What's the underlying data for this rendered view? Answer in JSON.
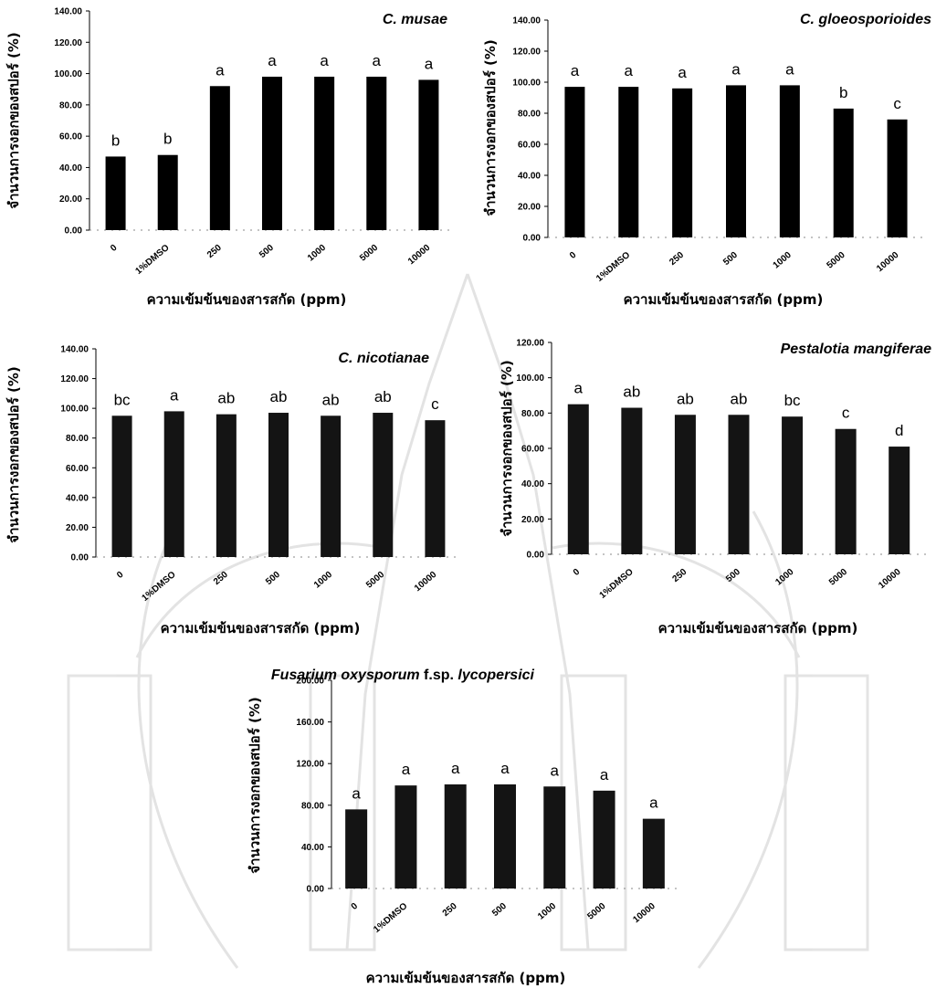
{
  "figure": {
    "watermark": "university-seal-watermark"
  },
  "chart_data": [
    {
      "type": "bar",
      "title": "C.  musae",
      "ylabel": "จำนวนการงอกของสปอร์  (%)",
      "xlabel": "ความเข้มข้นของสารสกัด  (ppm)",
      "categories": [
        "0",
        "1%DMSO",
        "250",
        "500",
        "1000",
        "5000",
        "10000"
      ],
      "values": [
        47,
        48,
        92,
        98,
        98,
        98,
        96
      ],
      "letters": [
        "b",
        "b",
        "a",
        "a",
        "a",
        "a",
        "a"
      ],
      "yticks": [
        "0.00",
        "20.00",
        "40.00",
        "60.00",
        "80.00",
        "100.00",
        "120.00",
        "140.00"
      ],
      "ylim": [
        0,
        140
      ],
      "bar_color": "#000000",
      "grid": false,
      "legend": "none"
    },
    {
      "type": "bar",
      "title": "C. gloeosporioides",
      "ylabel": "จำนวนการงอกของสปอร์  (%)",
      "xlabel": "ความเข้มข้นของสารสกัด  (ppm)",
      "categories": [
        "0",
        "1%DMSO",
        "250",
        "500",
        "1000",
        "5000",
        "10000"
      ],
      "values": [
        97,
        97,
        96,
        98,
        98,
        83,
        76
      ],
      "letters": [
        "a",
        "a",
        "a",
        "a",
        "a",
        "b",
        "c"
      ],
      "yticks": [
        "0.00",
        "20.00",
        "40.00",
        "60.00",
        "80.00",
        "100.00",
        "120.00",
        "140.00"
      ],
      "ylim": [
        0,
        140
      ],
      "bar_color": "#000000",
      "grid": false,
      "legend": "none"
    },
    {
      "type": "bar",
      "title": "C.  nicotianae",
      "ylabel": "จำนวนการงอกของสปอร์  (%)",
      "xlabel": "ความเข้มข้นของสารสกัด  (ppm)",
      "categories": [
        "0",
        "1%DMSO",
        "250",
        "500",
        "1000",
        "5000",
        "10000"
      ],
      "values": [
        95,
        98,
        96,
        97,
        95,
        97,
        92
      ],
      "letters": [
        "bc",
        "a",
        "ab",
        "ab",
        "ab",
        "ab",
        "c"
      ],
      "yticks": [
        "0.00",
        "20.00",
        "40.00",
        "60.00",
        "80.00",
        "100.00",
        "120.00",
        "140.00"
      ],
      "ylim": [
        0,
        140
      ],
      "bar_color": "#141414",
      "grid": false,
      "legend": "none"
    },
    {
      "type": "bar",
      "title": "Pestalotia mangiferae",
      "ylabel": "จำนวนการงอกของสปอร์  (%)",
      "xlabel": "ความเข้มข้นของสารสกัด  (ppm)",
      "categories": [
        "0",
        "1%DMSO",
        "250",
        "500",
        "1000",
        "5000",
        "10000"
      ],
      "values": [
        85,
        83,
        79,
        79,
        78,
        71,
        61
      ],
      "letters": [
        "a",
        "ab",
        "ab",
        "ab",
        "bc",
        "c",
        "d"
      ],
      "yticks": [
        "0.00",
        "20.00",
        "40.00",
        "60.00",
        "80.00",
        "100.00",
        "120.00"
      ],
      "ylim": [
        0,
        120
      ],
      "bar_color": "#141414",
      "grid": false,
      "legend": "none"
    },
    {
      "type": "bar",
      "title_italic_1": "Fusarium oxysporum",
      "title_plain": " f.sp. ",
      "title_italic_2": "lycopersici",
      "ylabel": "จำนวนการงอกของสปอร์  (%)",
      "xlabel": "ความเข้มข้นของสารสกัด  (ppm)",
      "categories": [
        "0",
        "1%DMSO",
        "250",
        "500",
        "1000",
        "5000",
        "10000"
      ],
      "values": [
        76,
        99,
        100,
        100,
        98,
        94,
        67
      ],
      "letters": [
        "a",
        "a",
        "a",
        "a",
        "a",
        "a",
        "a"
      ],
      "yticks": [
        "0.00",
        "40.00",
        "80.00",
        "120.00",
        "160.00",
        "200.00"
      ],
      "ylim": [
        0,
        200
      ],
      "bar_color": "#141414",
      "grid": false,
      "legend": "none"
    }
  ]
}
